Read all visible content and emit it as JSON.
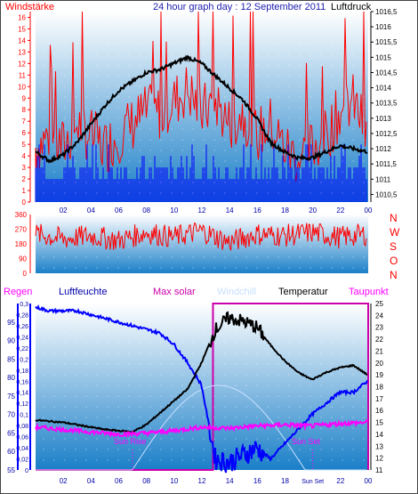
{
  "header": {
    "left_label": "Windstärke",
    "title": "24 hour graph day : 12 September 2011",
    "right_label": "Luftdruck"
  },
  "direction_labels": [
    "N",
    "W",
    "S",
    "O",
    "N"
  ],
  "legend": {
    "regen": "Regen",
    "luftfeuchte": "Luftfeuchte",
    "max_solar": "Max solar",
    "windchill": "Windchill",
    "temperatur": "Temperatur",
    "taupunkt": "Taupunkt"
  },
  "annotations": {
    "sun_rise": "Sun Rise",
    "sun_set": "Sun Set",
    "sun_set_tick": "Sun Set"
  },
  "colors": {
    "wind": "#ff0000",
    "pressure": "#000000",
    "direction": "#ff0000",
    "humidity": "#0000ff",
    "temperature": "#000000",
    "dewpoint": "#ff00ff",
    "solar": "#cc00aa",
    "windchill": "#c8e0ff",
    "rain_axis": "#0000ff",
    "background_top": "#ffffff",
    "background_bottom": "#1a7fc8"
  },
  "chart_data": [
    {
      "type": "line",
      "xlabel": "",
      "x_ticks": [
        "02",
        "04",
        "06",
        "08",
        "10",
        "12",
        "14",
        "16",
        "18",
        "20",
        "22",
        "00"
      ],
      "left_axis": {
        "label": "Windstärke",
        "ylim": [
          0,
          16.5
        ],
        "ticks": [
          "0",
          "1",
          "2",
          "3",
          "4",
          "5",
          "6",
          "7",
          "8",
          "9",
          "10",
          "11",
          "12",
          "13",
          "14",
          "15",
          "16"
        ]
      },
      "right_axis": {
        "label": "Luftdruck",
        "ylim": [
          1010.25,
          1016.5
        ],
        "ticks": [
          "1010,5",
          "1011",
          "1011,5",
          "1012",
          "1012,5",
          "1013",
          "1013,5",
          "1014",
          "1014,5",
          "1015",
          "1015,5",
          "1016",
          "1016,5"
        ]
      },
      "series": [
        {
          "name": "Luftdruck",
          "x": [
            0,
            1,
            2,
            3,
            4,
            5,
            6,
            7,
            8,
            9,
            10,
            11,
            12,
            13,
            14,
            15,
            16,
            17,
            18,
            19,
            20,
            21,
            22,
            23,
            24
          ],
          "values": [
            1011.9,
            1011.6,
            1011.8,
            1012.2,
            1012.8,
            1013.4,
            1013.9,
            1014.2,
            1014.5,
            1014.6,
            1014.8,
            1015.0,
            1014.8,
            1014.4,
            1014.0,
            1013.6,
            1013.0,
            1012.2,
            1011.9,
            1011.7,
            1011.7,
            1011.9,
            1012.1,
            1012.0,
            1011.9
          ]
        },
        {
          "name": "Windstärke",
          "x": [
            0,
            1,
            2,
            3,
            4,
            5,
            6,
            7,
            8,
            9,
            10,
            11,
            12,
            13,
            14,
            15,
            16,
            17,
            18,
            19,
            20,
            21,
            22,
            23,
            24
          ],
          "values": [
            5,
            6,
            5,
            7,
            6,
            5,
            6,
            7,
            8,
            8,
            9,
            10,
            8,
            9,
            7,
            8,
            6,
            7,
            5,
            4,
            5,
            6,
            8,
            9,
            6
          ]
        }
      ]
    },
    {
      "type": "scatter",
      "x_ticks": [],
      "left_axis": {
        "ylim": [
          0,
          360
        ],
        "ticks": [
          "0",
          "90",
          "180",
          "270",
          "360"
        ]
      },
      "series": [
        {
          "name": "",
          "x": [
            0,
            2,
            4,
            6,
            8,
            10,
            12,
            14,
            16,
            18,
            20,
            22,
            24
          ],
          "values": [
            240,
            210,
            230,
            200,
            250,
            220,
            260,
            190,
            240,
            230,
            250,
            220,
            240
          ]
        }
      ]
    },
    {
      "type": "line",
      "x_ticks": [
        "02",
        "04",
        "06",
        "08",
        "10",
        "12",
        "14",
        "16",
        "18",
        "Sun Set",
        "22",
        "00"
      ],
      "rain_axis": {
        "label": "Regen",
        "ylim": [
          0,
          0.3
        ],
        "ticks": [
          "0",
          "0,02",
          "0,04",
          "0,06",
          "0,08",
          "0,1",
          "0,12",
          "0,14",
          "0,16",
          "0,18",
          "0,2",
          "0,22",
          "0,24",
          "0,26",
          "0,28",
          "0,3"
        ]
      },
      "humidity_axis": {
        "label": "Luftfeuchte",
        "ylim": [
          55,
          100
        ],
        "ticks": [
          "55",
          "60",
          "65",
          "70",
          "75",
          "80",
          "85",
          "90",
          "95"
        ]
      },
      "temperature_axis": {
        "label": "Temperatur",
        "ylim": [
          11,
          25
        ],
        "ticks": [
          "11",
          "12",
          "13",
          "14",
          "15",
          "16",
          "17",
          "18",
          "19",
          "20",
          "21",
          "22",
          "23",
          "24",
          "25"
        ]
      },
      "series": [
        {
          "name": "Luftfeuchte",
          "x": [
            0,
            1,
            2,
            3,
            4,
            5,
            6,
            7,
            8,
            9,
            10,
            11,
            12,
            13,
            14,
            15,
            16,
            17,
            18,
            19,
            20,
            21,
            22,
            23,
            24
          ],
          "values": [
            99,
            98,
            98,
            98,
            97,
            96,
            95,
            94,
            93,
            92,
            89,
            84,
            78,
            58,
            57,
            59,
            61,
            58,
            62,
            66,
            70,
            73,
            76,
            76,
            79
          ]
        },
        {
          "name": "Temperatur",
          "x": [
            0,
            1,
            2,
            3,
            4,
            5,
            6,
            7,
            8,
            9,
            10,
            11,
            12,
            13,
            14,
            15,
            16,
            17,
            18,
            19,
            20,
            21,
            22,
            23,
            24
          ],
          "values": [
            15.2,
            15.1,
            15.0,
            14.8,
            14.6,
            14.4,
            14.3,
            14.2,
            14.8,
            15.8,
            16.8,
            17.8,
            20.0,
            22.8,
            23.8,
            23.5,
            23.0,
            21.5,
            20.2,
            19.2,
            18.6,
            19.2,
            19.6,
            19.8,
            19.0
          ]
        },
        {
          "name": "Taupunkt",
          "x": [
            0,
            2,
            4,
            6,
            8,
            10,
            12,
            14,
            16,
            18,
            20,
            22,
            24
          ],
          "values": [
            14.6,
            14.4,
            14.2,
            14.0,
            14.1,
            14.3,
            14.6,
            14.5,
            14.7,
            14.8,
            14.7,
            14.9,
            15.0
          ]
        },
        {
          "name": "Max solar",
          "x": [
            0,
            12.8,
            12.8,
            24
          ],
          "values": [
            0,
            0,
            1,
            1
          ]
        }
      ]
    }
  ]
}
